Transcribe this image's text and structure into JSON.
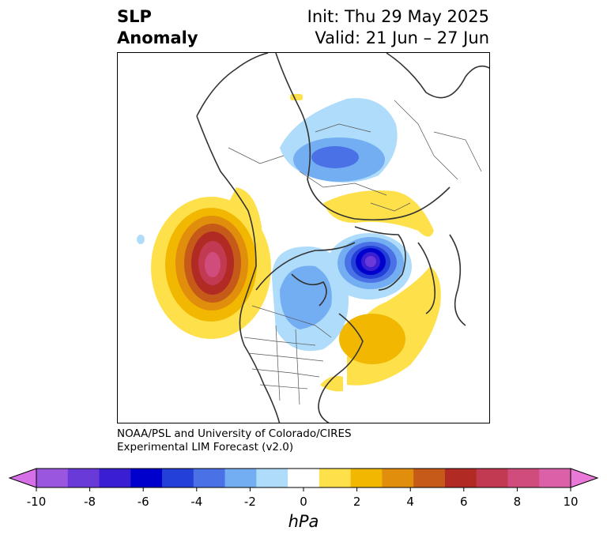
{
  "header": {
    "title_line1": "SLP",
    "title_line2": "Anomaly",
    "init": "Init: Thu 29 May 2025",
    "valid": "Valid: 21 Jun – 27 Jun"
  },
  "credit": {
    "line1": "NOAA/PSL and University of Colorado/CIRES",
    "line2": "Experimental LIM Forecast (v2.0)"
  },
  "colorbar": {
    "unit": "hPa",
    "ticks": [
      "-10",
      "-8",
      "-6",
      "-4",
      "-2",
      "0",
      "2",
      "4",
      "6",
      "8",
      "10"
    ],
    "colors": [
      "#d670e8",
      "#9b56e0",
      "#6a3ad8",
      "#3a1ed2",
      "#0000cc",
      "#2340d8",
      "#4a72e6",
      "#74aef2",
      "#aedcfa",
      "#ffffff",
      "#fee04a",
      "#f2b700",
      "#e08e0b",
      "#c65a18",
      "#b12a24",
      "#c23a52",
      "#d04c7c",
      "#dc60a8",
      "#ea78d6"
    ]
  }
}
